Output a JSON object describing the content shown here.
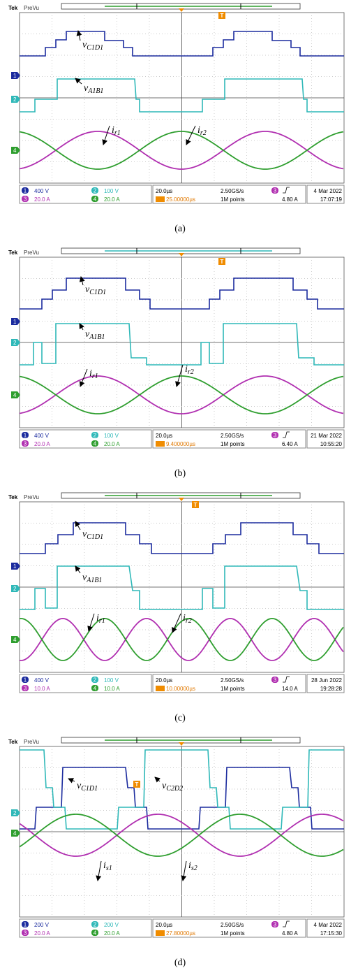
{
  "panels": [
    {
      "brand": "Tek",
      "mode": "PreVu",
      "trigger_marker": "T",
      "markers": [
        "1",
        "2",
        "4"
      ],
      "labels": [
        {
          "main": "v",
          "sub": "C1D1"
        },
        {
          "main": "v",
          "sub": "A1B1"
        },
        {
          "main": "i",
          "sub": "r1"
        },
        {
          "main": "i",
          "sub": "r2"
        }
      ],
      "channels": [
        {
          "id": "1",
          "scale": "400 V"
        },
        {
          "id": "2",
          "scale": "100 V"
        },
        {
          "id": "3",
          "scale": "20.0 A"
        },
        {
          "id": "4",
          "scale": "20.0 A"
        }
      ],
      "timebase": "20.0µs",
      "trigger_position": "25.00000µs",
      "sample_rate": "2.50GS/s",
      "record_length": "1M points",
      "trigger_source": "3",
      "trigger_level": "4.80 A",
      "date": "4 Mar 2022",
      "time": "17:07:19",
      "caption": "(a)"
    },
    {
      "brand": "Tek",
      "mode": "PreVu",
      "trigger_marker": "T",
      "markers": [
        "1",
        "2",
        "4"
      ],
      "labels": [
        {
          "main": "v",
          "sub": "C1D1"
        },
        {
          "main": "v",
          "sub": "A1B1"
        },
        {
          "main": "i",
          "sub": "r1"
        },
        {
          "main": "i",
          "sub": "r2"
        }
      ],
      "channels": [
        {
          "id": "1",
          "scale": "400 V"
        },
        {
          "id": "2",
          "scale": "100 V"
        },
        {
          "id": "3",
          "scale": "20.0 A"
        },
        {
          "id": "4",
          "scale": "20.0 A"
        }
      ],
      "timebase": "20.0µs",
      "trigger_position": "9.400000µs",
      "sample_rate": "2.50GS/s",
      "record_length": "1M points",
      "trigger_source": "3",
      "trigger_level": "6.40 A",
      "date": "21 Mar 2022",
      "time": "10:55:20",
      "caption": "(b)"
    },
    {
      "brand": "Tek",
      "mode": "PreVu",
      "trigger_marker": "T",
      "markers": [
        "1",
        "2",
        "4"
      ],
      "labels": [
        {
          "main": "v",
          "sub": "C1D1"
        },
        {
          "main": "v",
          "sub": "A1B1"
        },
        {
          "main": "i",
          "sub": "r1"
        },
        {
          "main": "i",
          "sub": "r2"
        }
      ],
      "channels": [
        {
          "id": "1",
          "scale": "400 V"
        },
        {
          "id": "2",
          "scale": "100 V"
        },
        {
          "id": "3",
          "scale": "10.0 A"
        },
        {
          "id": "4",
          "scale": "10.0 A"
        }
      ],
      "timebase": "20.0µs",
      "trigger_position": "10.00000µs",
      "sample_rate": "2.50GS/s",
      "record_length": "1M points",
      "trigger_source": "3",
      "trigger_level": "14.0 A",
      "date": "28 Jun 2022",
      "time": "19:28:28",
      "caption": "(c)"
    },
    {
      "brand": "Tek",
      "mode": "PreVu",
      "trigger_marker": "T",
      "markers": [
        "2",
        "4"
      ],
      "labels": [
        {
          "main": "v",
          "sub": "C1D1"
        },
        {
          "main": "v",
          "sub": "C2D2"
        },
        {
          "main": "i",
          "sub": "s1"
        },
        {
          "main": "i",
          "sub": "s2"
        }
      ],
      "channels": [
        {
          "id": "1",
          "scale": "200 V"
        },
        {
          "id": "2",
          "scale": "200 V"
        },
        {
          "id": "3",
          "scale": "20.0 A"
        },
        {
          "id": "4",
          "scale": "20.0 A"
        }
      ],
      "timebase": "20.0µs",
      "trigger_position": "27.80000µs",
      "sample_rate": "2.50GS/s",
      "record_length": "1M points",
      "trigger_source": "3",
      "trigger_level": "4.80 A",
      "date": "4 Mar 2022",
      "time": "17:15:30",
      "caption": "(d)"
    }
  ]
}
